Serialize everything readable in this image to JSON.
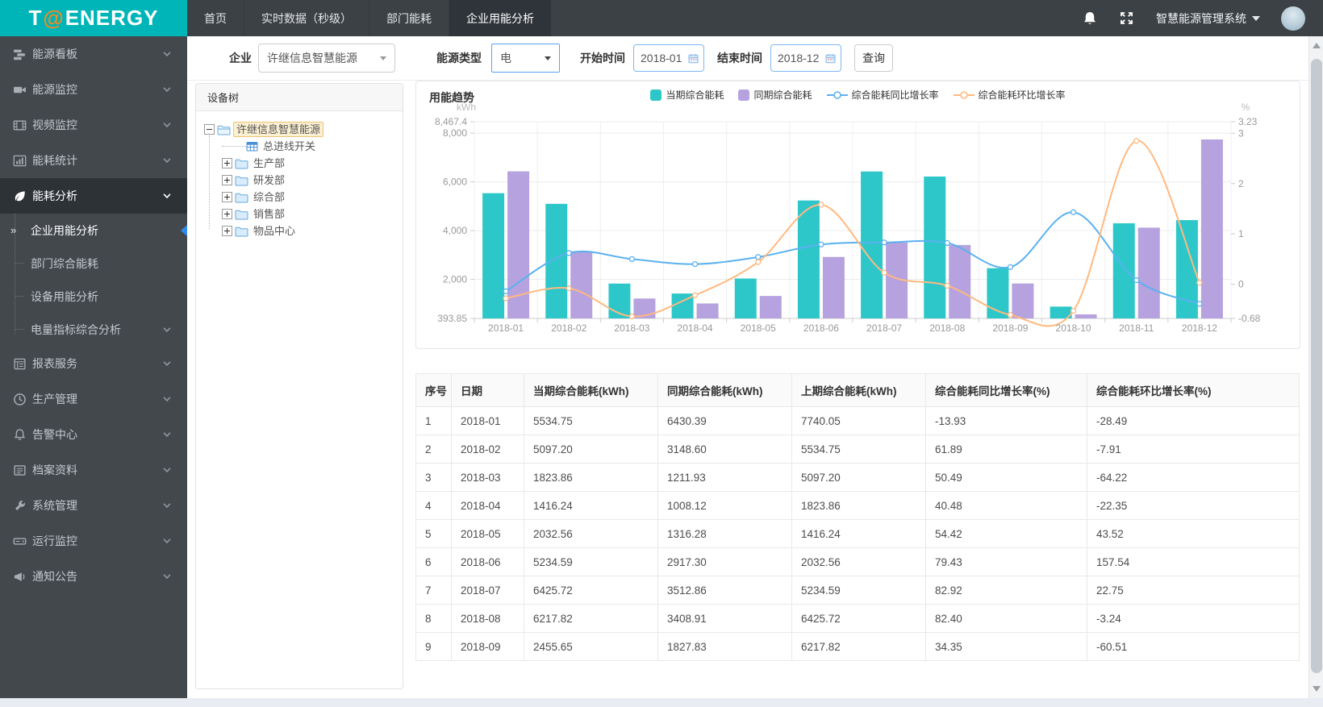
{
  "header": {
    "logo": {
      "pre": "T",
      "at": "@",
      "post": "ENERGY"
    },
    "tabs": [
      {
        "label": "首页",
        "active": false
      },
      {
        "label": "实时数据（秒级）",
        "active": false
      },
      {
        "label": "部门能耗",
        "active": false
      },
      {
        "label": "企业用能分析",
        "active": true
      }
    ],
    "system_name": "智慧能源管理系统"
  },
  "sidebar": {
    "items": [
      {
        "label": "能源看板",
        "icon": "dashboard"
      },
      {
        "label": "能源监控",
        "icon": "video"
      },
      {
        "label": "视频监控",
        "icon": "film"
      },
      {
        "label": "能耗统计",
        "icon": "chart"
      },
      {
        "label": "能耗分析",
        "icon": "leaf",
        "expanded": true,
        "children": [
          {
            "label": "企业用能分析",
            "active": true
          },
          {
            "label": "部门综合能耗"
          },
          {
            "label": "设备用能分析"
          },
          {
            "label": "电量指标综合分析",
            "has_children": true
          }
        ]
      },
      {
        "label": "报表服务",
        "icon": "report"
      },
      {
        "label": "生产管理",
        "icon": "clock"
      },
      {
        "label": "告警中心",
        "icon": "bell"
      },
      {
        "label": "档案资料",
        "icon": "archive"
      },
      {
        "label": "系统管理",
        "icon": "wrench"
      },
      {
        "label": "运行监控",
        "icon": "hdd"
      },
      {
        "label": "通知公告",
        "icon": "megaphone"
      }
    ]
  },
  "filters": {
    "company_label": "企业",
    "company_value": "许继信息智慧能源",
    "energy_type_label": "能源类型",
    "energy_type_value": "电",
    "start_label": "开始时间",
    "start_value": "2018-01",
    "end_label": "结束时间",
    "end_value": "2018-12",
    "query_button": "查询"
  },
  "tree": {
    "title": "设备树",
    "root": {
      "label": "许继信息智慧能源",
      "selected": true,
      "expanded": true
    },
    "children": [
      {
        "label": "总进线开关",
        "icon": "meter",
        "leaf": true
      },
      {
        "label": "生产部",
        "icon": "folder"
      },
      {
        "label": "研发部",
        "icon": "folder"
      },
      {
        "label": "综合部",
        "icon": "folder"
      },
      {
        "label": "销售部",
        "icon": "folder"
      },
      {
        "label": "物品中心",
        "icon": "folder"
      }
    ]
  },
  "chart_data": {
    "type": "bar",
    "title": "用能趋势",
    "categories": [
      "2018-01",
      "2018-02",
      "2018-03",
      "2018-04",
      "2018-05",
      "2018-06",
      "2018-07",
      "2018-08",
      "2018-09",
      "2018-10",
      "2018-11",
      "2018-12"
    ],
    "left_axis": {
      "label": "kWh",
      "min": 393.85,
      "max": 8467.4,
      "ticks": [
        {
          "v": 8467.4,
          "t": "8,467.4"
        },
        {
          "v": 8000,
          "t": "8,000"
        },
        {
          "v": 6000,
          "t": "6,000"
        },
        {
          "v": 4000,
          "t": "4,000"
        },
        {
          "v": 2000,
          "t": "2,000"
        },
        {
          "v": 393.85,
          "t": "393.85"
        }
      ]
    },
    "right_axis": {
      "label": "%",
      "min": -0.68,
      "max": 3.23,
      "ticks": [
        {
          "v": 3.23,
          "t": "3.23"
        },
        {
          "v": 3,
          "t": "3"
        },
        {
          "v": 2,
          "t": "2"
        },
        {
          "v": 1,
          "t": "1"
        },
        {
          "v": 0,
          "t": "0"
        },
        {
          "v": -0.68,
          "t": "-0.68"
        }
      ]
    },
    "series": [
      {
        "name": "当期综合能耗",
        "type": "bar",
        "color": "#2ec7c9",
        "values": [
          5534.75,
          5097.2,
          1823.86,
          1416.24,
          2032.56,
          5234.59,
          6425.72,
          6217.82,
          2455.65,
          880,
          4300,
          4430
        ]
      },
      {
        "name": "同期综合能耗",
        "type": "bar",
        "color": "#b6a2de",
        "values": [
          6430.39,
          3148.6,
          1211.93,
          1008.12,
          1316.28,
          2917.3,
          3512.86,
          3408.91,
          1827.83,
          560,
          4120,
          7740
        ]
      },
      {
        "name": "综合能耗同比增长率",
        "type": "line",
        "color": "#5ab1ef",
        "values": [
          -0.14,
          0.62,
          0.5,
          0.4,
          0.54,
          0.79,
          0.83,
          0.82,
          0.34,
          1.43,
          0.08,
          -0.39
        ]
      },
      {
        "name": "综合能耗环比增长率",
        "type": "line",
        "color": "#ffb980",
        "values": [
          -0.28,
          -0.08,
          -0.64,
          -0.22,
          0.44,
          1.58,
          0.23,
          -0.03,
          -0.61,
          -0.53,
          2.85,
          0.03
        ]
      }
    ],
    "legend_position": "top-center",
    "grid": true
  },
  "table": {
    "columns": [
      "序号",
      "日期",
      "当期综合能耗(kWh)",
      "同期综合能耗(kWh)",
      "上期综合能耗(kWh)",
      "综合能耗同比增长率(%)",
      "综合能耗环比增长率(%)"
    ],
    "rows": [
      [
        "1",
        "2018-01",
        "5534.75",
        "6430.39",
        "7740.05",
        "-13.93",
        "-28.49"
      ],
      [
        "2",
        "2018-02",
        "5097.20",
        "3148.60",
        "5534.75",
        "61.89",
        "-7.91"
      ],
      [
        "3",
        "2018-03",
        "1823.86",
        "1211.93",
        "5097.20",
        "50.49",
        "-64.22"
      ],
      [
        "4",
        "2018-04",
        "1416.24",
        "1008.12",
        "1823.86",
        "40.48",
        "-22.35"
      ],
      [
        "5",
        "2018-05",
        "2032.56",
        "1316.28",
        "1416.24",
        "54.42",
        "43.52"
      ],
      [
        "6",
        "2018-06",
        "5234.59",
        "2917.30",
        "2032.56",
        "79.43",
        "157.54"
      ],
      [
        "7",
        "2018-07",
        "6425.72",
        "3512.86",
        "5234.59",
        "82.92",
        "22.75"
      ],
      [
        "8",
        "2018-08",
        "6217.82",
        "3408.91",
        "6425.72",
        "82.40",
        "-3.24"
      ],
      [
        "9",
        "2018-09",
        "2455.65",
        "1827.83",
        "6217.82",
        "34.35",
        "-60.51"
      ]
    ]
  },
  "colors": {
    "brand_teal": "#00b5b8",
    "header_bg": "#3c4146",
    "sidebar_bg": "#43484d",
    "active_blue": "#2d8cf0",
    "logo_at_orange": "#f28a21"
  }
}
